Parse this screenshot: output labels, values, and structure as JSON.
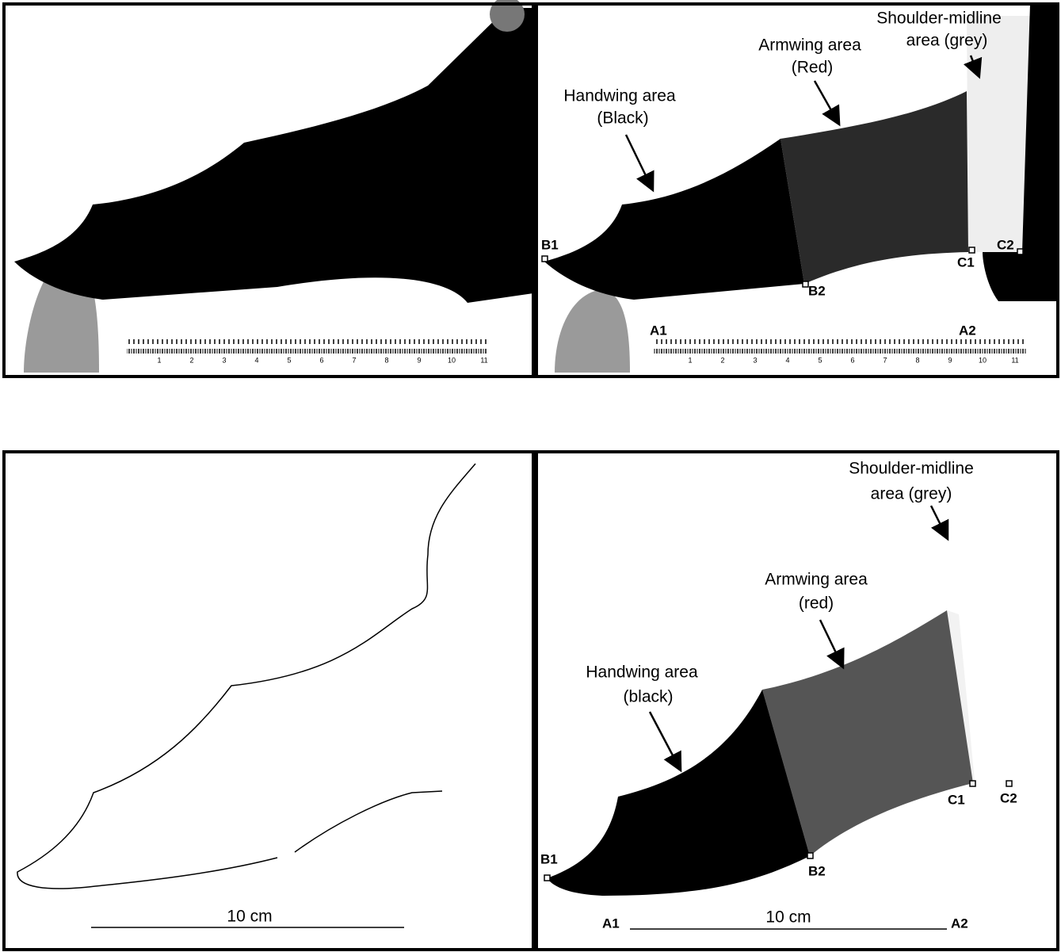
{
  "panels": [
    {
      "ruler_labels": [
        "1",
        "2",
        "3",
        "4",
        "5",
        "6",
        "7",
        "8",
        "9",
        "10",
        "11"
      ]
    },
    {
      "shoulder": [
        "Shoulder-midline",
        "area (grey)"
      ],
      "armwing": [
        "Armwing area",
        "(Red)"
      ],
      "handwing": [
        "Handwing area",
        "(Black)"
      ],
      "points": [
        "B1",
        "B2",
        "C1",
        "C2",
        "A1",
        "A2"
      ],
      "ruler_labels": [
        "1",
        "2",
        "3",
        "4",
        "5",
        "6",
        "7",
        "8",
        "9",
        "10",
        "11"
      ]
    },
    {
      "scale": "10 cm"
    },
    {
      "shoulder": [
        "Shoulder-midline",
        "area (grey)"
      ],
      "armwing": [
        "Armwing area",
        "(red)"
      ],
      "handwing": [
        "Handwing area",
        "(black)"
      ],
      "points": [
        "B1",
        "B2",
        "C1",
        "C2",
        "A1",
        "A2"
      ],
      "scale": "10 cm"
    }
  ]
}
